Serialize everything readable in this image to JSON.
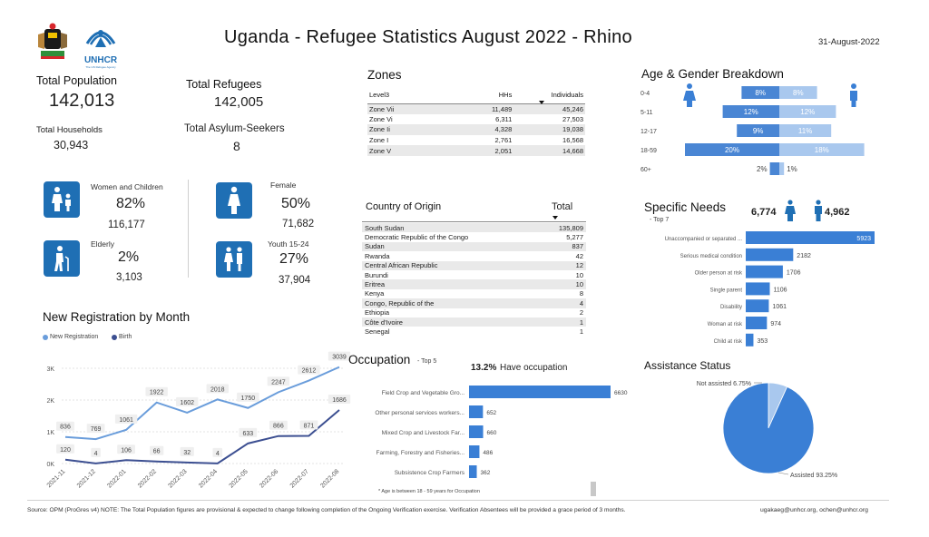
{
  "header": {
    "title": "Uganda - Refugee Statistics August 2022 - Rhino",
    "date": "31-August-2022",
    "unhcr_logo_text": "UNHCR",
    "unhcr_logo_subtext": "The UN Refugee Agency"
  },
  "kpis": {
    "total_population_label": "Total Population",
    "total_population_value": "142,013",
    "total_refugees_label": "Total Refugees",
    "total_refugees_value": "142,005",
    "total_households_label": "Total Households",
    "total_households_value": "30,943",
    "total_asylum_label": "Total Asylum-Seekers",
    "total_asylum_value": "8"
  },
  "demographics": {
    "women_children": {
      "label": "Women and Children",
      "pct": "82%",
      "count": "116,177"
    },
    "elderly": {
      "label": "Elderly",
      "pct": "2%",
      "count": "3,103"
    },
    "female": {
      "label": "Female",
      "pct": "50%",
      "count": "71,682"
    },
    "youth": {
      "label": "Youth 15-24",
      "pct": "27%",
      "count": "37,904"
    }
  },
  "zones": {
    "title": "Zones",
    "headers": [
      "Level3",
      "HHs",
      "Individuals"
    ],
    "rows": [
      [
        "Zone Vii",
        "11,489",
        "45,246"
      ],
      [
        "Zone Vi",
        "6,311",
        "27,503"
      ],
      [
        "Zone Ii",
        "4,328",
        "19,038"
      ],
      [
        "Zone I",
        "2,761",
        "16,568"
      ],
      [
        "Zone V",
        "2,051",
        "14,668"
      ]
    ]
  },
  "country_of_origin": {
    "title": "Country of Origin",
    "total_label": "Total",
    "rows": [
      [
        "South Sudan",
        "135,809"
      ],
      [
        "Democratic Republic of the Congo",
        "5,277"
      ],
      [
        "Sudan",
        "837"
      ],
      [
        "Rwanda",
        "42"
      ],
      [
        "Central African Republic",
        "12"
      ],
      [
        "Burundi",
        "10"
      ],
      [
        "Eritrea",
        "10"
      ],
      [
        "Kenya",
        "8"
      ],
      [
        "Congo, Republic of the",
        "4"
      ],
      [
        "Ethiopia",
        "2"
      ],
      [
        "Côte d'Ivoire",
        "1"
      ],
      [
        "Senegal",
        "1"
      ]
    ]
  },
  "age_gender": {
    "title": "Age & Gender Breakdown",
    "groups": [
      "0-4",
      "5-11",
      "12-17",
      "18-59",
      "60+"
    ],
    "male_pct": [
      8,
      12,
      9,
      20,
      2
    ],
    "female_pct": [
      8,
      12,
      11,
      18,
      1
    ],
    "male_labels": [
      "8%",
      "12%",
      "9%",
      "20%",
      "2%"
    ],
    "female_labels": [
      "8%",
      "12%",
      "11%",
      "18%",
      "1%"
    ],
    "male_color": "#4a86d4",
    "female_color": "#a9c8ee"
  },
  "specific_needs": {
    "title": "Specific Needs",
    "subtitle": "- Top 7",
    "female_total": "6,774",
    "male_total": "4,962",
    "categories": [
      "Unaccompanied or separated ...",
      "Serious medical condition",
      "Older person at risk",
      "Single parent",
      "Disability",
      "Woman at risk",
      "Child at risk"
    ],
    "values": [
      5923,
      2182,
      1706,
      1106,
      1061,
      974,
      353
    ],
    "value_labels": [
      "5923",
      "2182",
      "1706",
      "1106",
      "1061",
      "974",
      "353"
    ],
    "color": "#3a7fd5"
  },
  "registration": {
    "title": "New Registration by Month",
    "legend": [
      "New Registration",
      "Birth"
    ],
    "x": [
      "2021-11",
      "2021-12",
      "2022-01",
      "2022-02",
      "2022-03",
      "2022-04",
      "2022-05",
      "2022-06",
      "2022-07",
      "2022-08"
    ],
    "new_registration": [
      836,
      769,
      1061,
      1922,
      1602,
      2018,
      1750,
      2247,
      2612,
      3039
    ],
    "birth": [
      120,
      4,
      106,
      66,
      32,
      4,
      633,
      866,
      871,
      1686
    ],
    "new_labels": [
      "836",
      "769",
      "1061",
      "1922",
      "1602",
      "2018",
      "1750",
      "2247",
      "2612",
      "3039"
    ],
    "birth_labels": [
      "120",
      "4",
      "106",
      "66",
      "32",
      "4",
      "633",
      "866",
      "871",
      "1686"
    ],
    "y_ticks": [
      "0K",
      "1K",
      "2K",
      "3K"
    ],
    "ylim": [
      0,
      3000
    ],
    "new_color": "#6a9ddb",
    "birth_color": "#3c4f91"
  },
  "occupation": {
    "title": "Occupation",
    "subtitle": "- Top 5",
    "pct_label": "13.2%",
    "pct_text": "Have occupation",
    "categories": [
      "Field Crop and Vegetable Gro...",
      "Other personal services workers...",
      "Mixed Crop and Livestock Far...",
      "Farming, Forestry and Fisheries...",
      "Subsistence Crop Farmers"
    ],
    "values": [
      6630,
      652,
      660,
      486,
      362
    ],
    "value_labels": [
      "6630",
      "652",
      "660",
      "486",
      "362"
    ],
    "note": "* Age is between 18 - 59 years for Occupation",
    "color": "#3a7fd5"
  },
  "assistance": {
    "title": "Assistance Status",
    "slices": [
      {
        "label": "Not assisted 6.75%",
        "value": 6.75,
        "color": "#a9c8ee"
      },
      {
        "label": "Assisted 93.25%",
        "value": 93.25,
        "color": "#3a7fd5"
      }
    ]
  },
  "chart_data": [
    {
      "type": "line",
      "title": "New Registration by Month",
      "x": [
        "2021-11",
        "2021-12",
        "2022-01",
        "2022-02",
        "2022-03",
        "2022-04",
        "2022-05",
        "2022-06",
        "2022-07",
        "2022-08"
      ],
      "series": [
        {
          "name": "New Registration",
          "values": [
            836,
            769,
            1061,
            1922,
            1602,
            2018,
            1750,
            2247,
            2612,
            3039
          ]
        },
        {
          "name": "Birth",
          "values": [
            120,
            4,
            106,
            66,
            32,
            4,
            633,
            866,
            871,
            1686
          ]
        }
      ],
      "ylim": [
        0,
        3000
      ],
      "legend": "top-left"
    },
    {
      "type": "bar",
      "title": "Age & Gender Breakdown",
      "categories": [
        "0-4",
        "5-11",
        "12-17",
        "18-59",
        "60+"
      ],
      "series": [
        {
          "values": [
            8,
            12,
            9,
            20,
            2
          ]
        },
        {
          "values": [
            8,
            12,
            11,
            18,
            1
          ]
        }
      ]
    },
    {
      "type": "bar",
      "title": "Specific Needs",
      "categories": [
        "Unaccompanied or separated ...",
        "Serious medical condition",
        "Older person at risk",
        "Single parent",
        "Disability",
        "Woman at risk",
        "Child at risk"
      ],
      "values": [
        5923,
        2182,
        1706,
        1106,
        1061,
        974,
        353
      ]
    },
    {
      "type": "bar",
      "title": "Occupation",
      "categories": [
        "Field Crop and Vegetable Gro...",
        "Other personal services workers...",
        "Mixed Crop and Livestock Far...",
        "Farming, Forestry and Fisheries...",
        "Subsistence Crop Farmers"
      ],
      "values": [
        6630,
        652,
        660,
        486,
        362
      ]
    },
    {
      "type": "pie",
      "title": "Assistance Status",
      "categories": [
        "Not assisted",
        "Assisted"
      ],
      "values": [
        6.75,
        93.25
      ]
    }
  ],
  "footer": {
    "source": "Source: OPM (ProGres v4)   NOTE: The Total Population figures are provisional & expected to change following completion of the Ongoing Verification exercise. Verification Absentees will be provided a grace period of 3 months.",
    "contact": "ugakaeg@unhcr.org, ochen@unhcr.org"
  }
}
